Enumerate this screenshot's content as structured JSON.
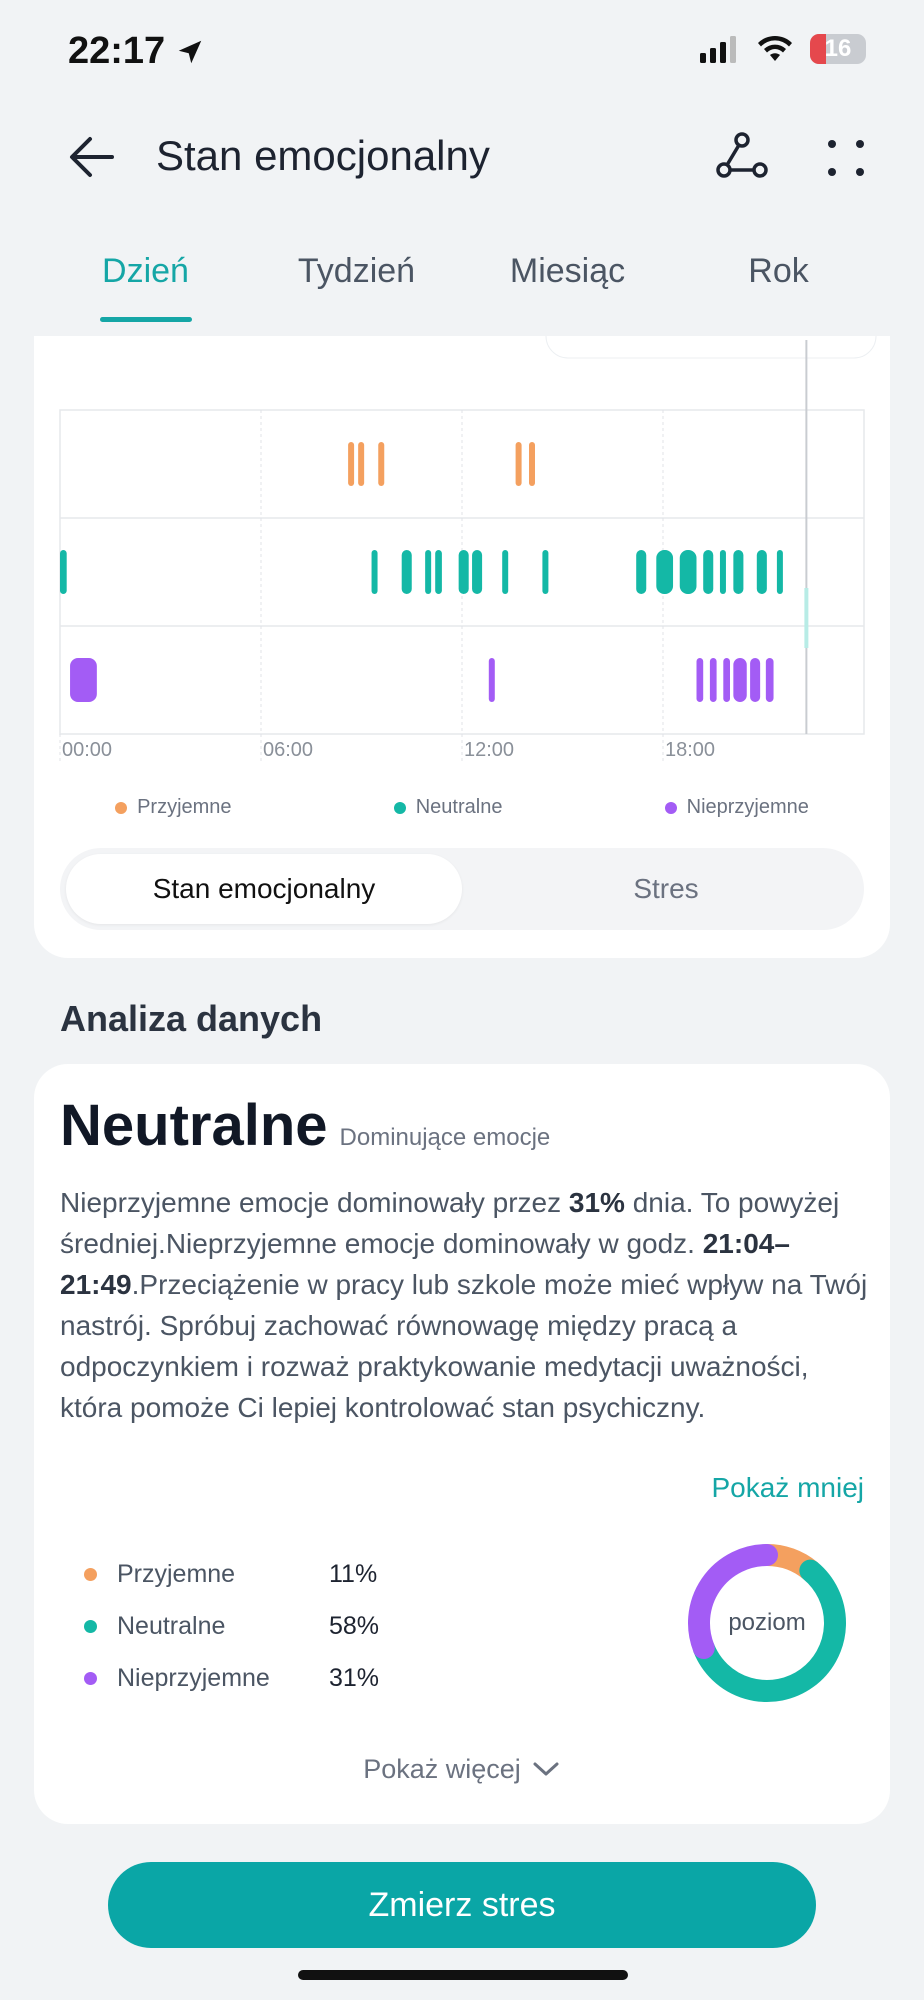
{
  "status_bar": {
    "time": "22:17",
    "battery": "16"
  },
  "header": {
    "title": "Stan emocjonalny"
  },
  "tabs": [
    {
      "label": "Dzień",
      "active": true
    },
    {
      "label": "Tydzień",
      "active": false
    },
    {
      "label": "Miesiąc",
      "active": false
    },
    {
      "label": "Rok",
      "active": false
    }
  ],
  "chart_data": {
    "type": "scatter",
    "x_unit": "hour of day",
    "xlim": [
      0,
      24
    ],
    "xticks": [
      "00:00",
      "06:00",
      "12:00",
      "18:00"
    ],
    "rows": [
      "Przyjemne",
      "Neutralne",
      "Nieprzyjemne"
    ],
    "series": [
      {
        "name": "Przyjemne",
        "color": "#f4a05f",
        "events": [
          [
            8.6,
            8.7
          ],
          [
            8.9,
            9.0
          ],
          [
            9.5,
            9.6
          ],
          [
            13.6,
            13.7
          ],
          [
            14.0,
            14.1
          ]
        ]
      },
      {
        "name": "Neutralne",
        "color": "#14b8a6",
        "events": [
          [
            0.0,
            0.2
          ],
          [
            9.3,
            9.4
          ],
          [
            10.2,
            10.5
          ],
          [
            10.9,
            11.05
          ],
          [
            11.2,
            11.4
          ],
          [
            11.9,
            12.2
          ],
          [
            12.3,
            12.6
          ],
          [
            13.2,
            13.35
          ],
          [
            14.4,
            14.55
          ],
          [
            17.2,
            17.5
          ],
          [
            17.8,
            18.3
          ],
          [
            18.5,
            19.0
          ],
          [
            19.2,
            19.5
          ],
          [
            19.7,
            19.85
          ],
          [
            20.1,
            20.4
          ],
          [
            20.8,
            21.1
          ],
          [
            21.4,
            21.55
          ]
        ]
      },
      {
        "name": "Nieprzyjemne",
        "color": "#a35cf5",
        "events": [
          [
            0.3,
            1.1
          ],
          [
            12.8,
            12.95
          ],
          [
            19.0,
            19.2
          ],
          [
            19.4,
            19.6
          ],
          [
            19.8,
            20.0
          ],
          [
            20.1,
            20.5
          ],
          [
            20.6,
            20.9
          ],
          [
            21.07,
            21.3
          ]
        ]
      }
    ],
    "current_time_marker": 22.28
  },
  "legend": [
    {
      "label": "Przyjemne",
      "color": "#f4a05f"
    },
    {
      "label": "Neutralne",
      "color": "#14b8a6"
    },
    {
      "label": "Nieprzyjemne",
      "color": "#a35cf5"
    }
  ],
  "segmented": {
    "left": "Stan emocjonalny",
    "right": "Stres"
  },
  "analysis": {
    "section_title": "Analiza danych",
    "dominant_value": "Neutralne",
    "dominant_label": "Dominujące emocje",
    "text_1": "Nieprzyjemne emocje dominowały przez ",
    "text_bold_1": "31%",
    "text_2": " dnia. To powyżej średniej.Nieprzyjemne emocje dominowały w godz. ",
    "text_bold_2": "21:04–21:49",
    "text_3": ".Przeciążenie w pracy lub szkole może mieć wpływ na Twój nastrój. Spróbuj zachować równowagę między pracą a odpoczynkiem i rozważ praktykowanie medytacji uważności, która pomoże Ci lepiej kontrolować stan psychiczny.",
    "show_less": "Pokaż mniej",
    "breakdown": [
      {
        "label": "Przyjemne",
        "pct": "11%",
        "color": "#f4a05f",
        "value": 11
      },
      {
        "label": "Neutralne",
        "pct": "58%",
        "color": "#14b8a6",
        "value": 58
      },
      {
        "label": "Nieprzyjemne",
        "pct": "31%",
        "color": "#a35cf5",
        "value": 31
      }
    ],
    "donut_label": "poziom",
    "show_more": "Pokaż więcej"
  },
  "measure_button": "Zmierz stres"
}
